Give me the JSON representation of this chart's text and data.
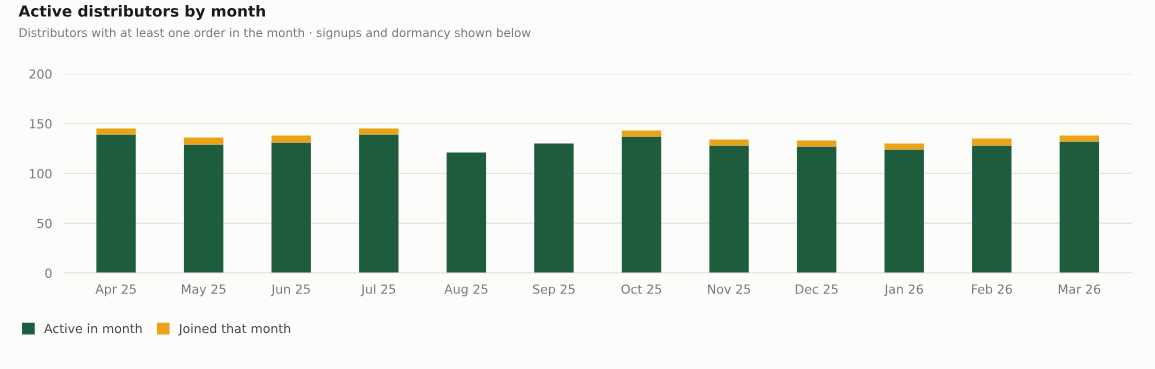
{
  "chart_data": {
    "type": "bar",
    "title": "Active distributors by month",
    "subtitle": "Distributors with at least one order in the month · signups and dormancy shown below",
    "categories": [
      "Apr 25",
      "May 25",
      "Jun 25",
      "Jul 25",
      "Aug 25",
      "Sep 25",
      "Oct 25",
      "Nov 25",
      "Dec 25",
      "Jan 26",
      "Feb 26",
      "Mar 26"
    ],
    "stacked": true,
    "series": [
      {
        "name": "Active in month",
        "color": "#1e5c3e",
        "values": [
          139,
          129,
          131,
          139,
          121,
          130,
          137,
          128,
          127,
          124,
          128,
          132
        ]
      },
      {
        "name": "Joined that month",
        "color": "#e8a317",
        "values": [
          6,
          7,
          7,
          6,
          0,
          0,
          6,
          6,
          6,
          6,
          7,
          6
        ]
      }
    ],
    "ylim": [
      0,
      200
    ],
    "yticks": [
      0,
      50,
      100,
      150,
      200
    ],
    "grid": "y",
    "legend": "bottom left"
  }
}
